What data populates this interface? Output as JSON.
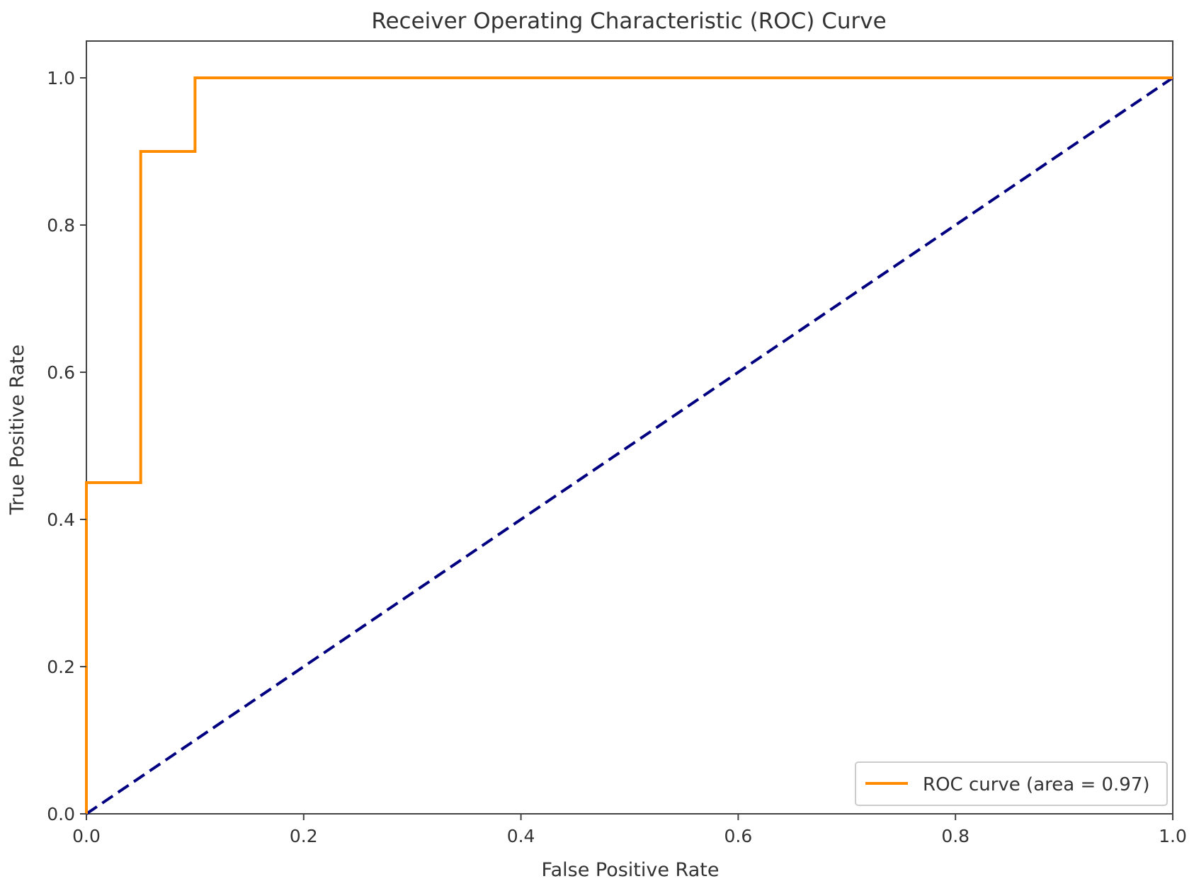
{
  "chart_data": {
    "type": "line",
    "title": "Receiver Operating Characteristic (ROC) Curve",
    "xlabel": "False Positive Rate",
    "ylabel": "True Positive Rate",
    "xlim": [
      0.0,
      1.0
    ],
    "ylim": [
      0.0,
      1.05
    ],
    "x_ticks": [
      0.0,
      0.2,
      0.4,
      0.6,
      0.8,
      1.0
    ],
    "x_tick_labels": [
      "0.0",
      "0.2",
      "0.4",
      "0.6",
      "0.8",
      "1.0"
    ],
    "y_ticks": [
      0.0,
      0.2,
      0.4,
      0.6,
      0.8,
      1.0
    ],
    "y_tick_labels": [
      "0.0",
      "0.2",
      "0.4",
      "0.6",
      "0.8",
      "1.0"
    ],
    "grid": false,
    "legend_position": "lower right",
    "series": [
      {
        "name": "ROC curve (area = 0.97)",
        "color": "#ff8c00",
        "style": "solid",
        "x": [
          0.0,
          0.0,
          0.05,
          0.05,
          0.1,
          0.1,
          1.0
        ],
        "y": [
          0.0,
          0.45,
          0.45,
          0.9,
          0.9,
          1.0,
          1.0
        ]
      },
      {
        "color": "#000080",
        "style": "dashed",
        "x": [
          0.0,
          1.0
        ],
        "y": [
          0.0,
          1.0
        ]
      }
    ]
  }
}
